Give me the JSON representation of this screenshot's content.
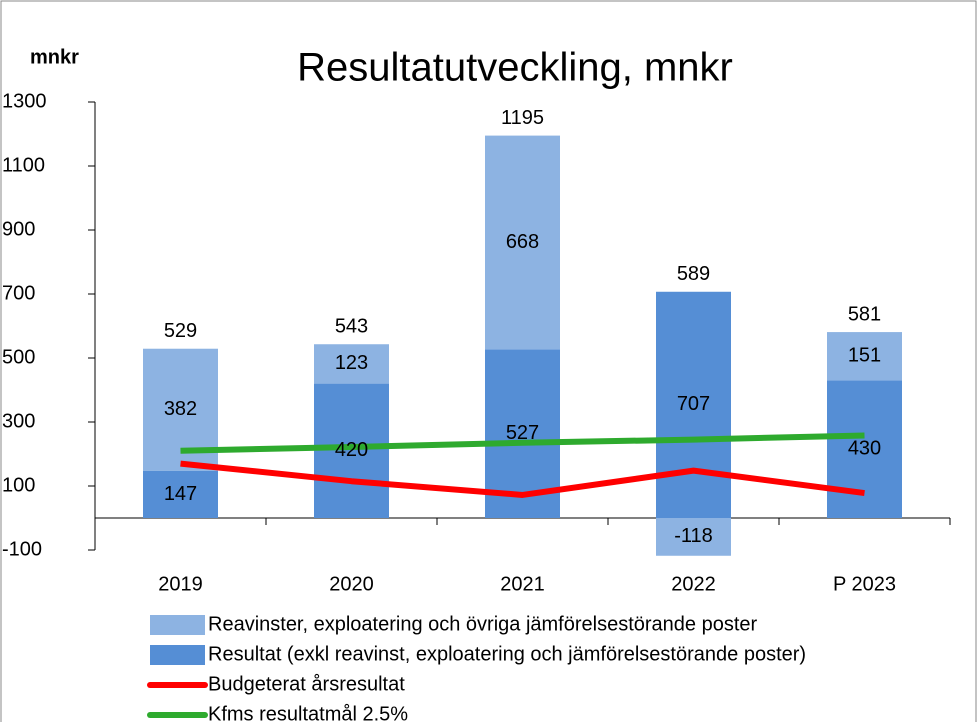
{
  "chart_data": {
    "type": "bar",
    "stacked": true,
    "title": "Resultatutveckling, mnkr",
    "y_label": "mnkr",
    "categories": [
      "2019",
      "2020",
      "2021",
      "2022",
      "P 2023"
    ],
    "series": [
      {
        "name": "Reavinster, exploatering och övriga jämförelsestörande poster",
        "type": "bar",
        "color": "#8db3e2",
        "values": [
          382,
          123,
          668,
          -118,
          151
        ]
      },
      {
        "name": "Resultat (exkl reavinst, exploatering och jämförelsestörande poster)",
        "type": "bar",
        "color": "#558ed5",
        "values": [
          147,
          420,
          527,
          707,
          430
        ]
      },
      {
        "name": "Budgeterat årsresultat",
        "type": "line",
        "color": "#ff0000",
        "values": [
          170,
          115,
          72,
          148,
          78
        ]
      },
      {
        "name": "Kfms resultatmål 2.5%",
        "type": "line",
        "color": "#2eaa2e",
        "values": [
          210,
          222,
          235,
          245,
          258
        ]
      }
    ],
    "totals": [
      529,
      543,
      1195,
      589,
      581
    ],
    "ylim": [
      -100,
      1300
    ],
    "yticks": [
      -100,
      100,
      300,
      500,
      700,
      900,
      1100,
      1300
    ]
  }
}
